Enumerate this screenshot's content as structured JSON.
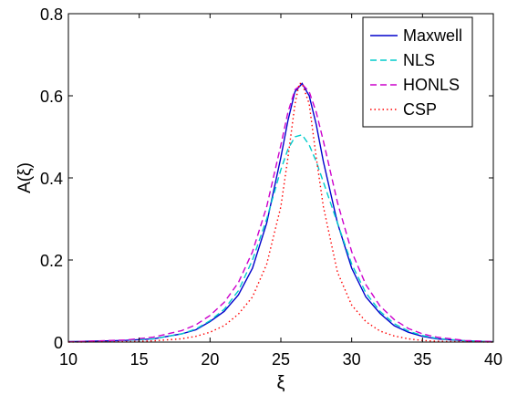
{
  "chart_data": {
    "type": "line",
    "title": "",
    "xlabel": "ξ",
    "ylabel": "A(ξ)",
    "xlim": [
      10,
      40
    ],
    "ylim": [
      0,
      0.8
    ],
    "xticks": [
      10,
      15,
      20,
      25,
      30,
      35,
      40
    ],
    "yticks": [
      0,
      0.2,
      0.4,
      0.6,
      0.8
    ],
    "xtick_labels": [
      "10",
      "15",
      "20",
      "25",
      "30",
      "35",
      "40"
    ],
    "ytick_labels": [
      "0",
      "0.2",
      "0.4",
      "0.6",
      "0.8"
    ],
    "grid": false,
    "legend": {
      "position": "top-right",
      "entries": [
        "Maxwell",
        "NLS",
        "HONLS",
        "CSP"
      ]
    },
    "series": [
      {
        "name": "Maxwell",
        "color": "#0000cc",
        "style": "solid",
        "x": [
          10,
          14,
          16,
          18,
          19,
          20,
          21,
          22,
          23,
          24,
          25,
          25.5,
          26,
          26.5,
          27,
          27.5,
          28,
          29,
          30,
          31,
          32,
          33,
          34,
          35,
          36,
          38,
          40
        ],
        "y": [
          0.001,
          0.004,
          0.008,
          0.02,
          0.03,
          0.05,
          0.075,
          0.115,
          0.18,
          0.29,
          0.45,
          0.54,
          0.61,
          0.63,
          0.6,
          0.53,
          0.44,
          0.29,
          0.18,
          0.11,
          0.07,
          0.04,
          0.024,
          0.014,
          0.008,
          0.003,
          0.001
        ]
      },
      {
        "name": "NLS",
        "color": "#00cccc",
        "style": "dashed",
        "x": [
          10,
          14,
          16,
          18,
          19,
          20,
          21,
          22,
          23,
          24,
          25,
          25.5,
          26,
          26.5,
          27,
          27.5,
          28,
          29,
          30,
          31,
          32,
          33,
          34,
          35,
          36,
          38,
          40
        ],
        "y": [
          0.001,
          0.004,
          0.008,
          0.02,
          0.032,
          0.052,
          0.08,
          0.125,
          0.2,
          0.3,
          0.42,
          0.47,
          0.5,
          0.505,
          0.48,
          0.44,
          0.39,
          0.29,
          0.19,
          0.12,
          0.075,
          0.045,
          0.027,
          0.016,
          0.009,
          0.003,
          0.001
        ]
      },
      {
        "name": "HONLS",
        "color": "#cc00cc",
        "style": "dashed",
        "x": [
          10,
          14,
          16,
          18,
          19,
          20,
          21,
          22,
          23,
          24,
          25,
          25.5,
          26,
          26.5,
          27,
          27.5,
          28,
          29,
          30,
          31,
          32,
          33,
          34,
          35,
          36,
          38,
          40
        ],
        "y": [
          0.001,
          0.005,
          0.012,
          0.028,
          0.042,
          0.065,
          0.097,
          0.145,
          0.22,
          0.33,
          0.48,
          0.56,
          0.615,
          0.628,
          0.61,
          0.56,
          0.49,
          0.34,
          0.22,
          0.14,
          0.088,
          0.055,
          0.033,
          0.02,
          0.012,
          0.004,
          0.001
        ]
      },
      {
        "name": "CSP",
        "color": "#ff0000",
        "style": "dotted",
        "x": [
          10,
          14,
          16,
          18,
          19,
          20,
          21,
          22,
          23,
          24,
          25,
          25.5,
          26,
          26.3,
          26.5,
          27,
          27.5,
          28,
          29,
          30,
          31,
          32,
          33,
          34,
          35,
          36,
          38,
          40
        ],
        "y": [
          0.0,
          0.001,
          0.003,
          0.008,
          0.014,
          0.024,
          0.04,
          0.068,
          0.11,
          0.19,
          0.33,
          0.45,
          0.58,
          0.63,
          0.63,
          0.58,
          0.45,
          0.33,
          0.17,
          0.09,
          0.05,
          0.027,
          0.015,
          0.008,
          0.004,
          0.002,
          0.001,
          0.0
        ]
      }
    ]
  }
}
